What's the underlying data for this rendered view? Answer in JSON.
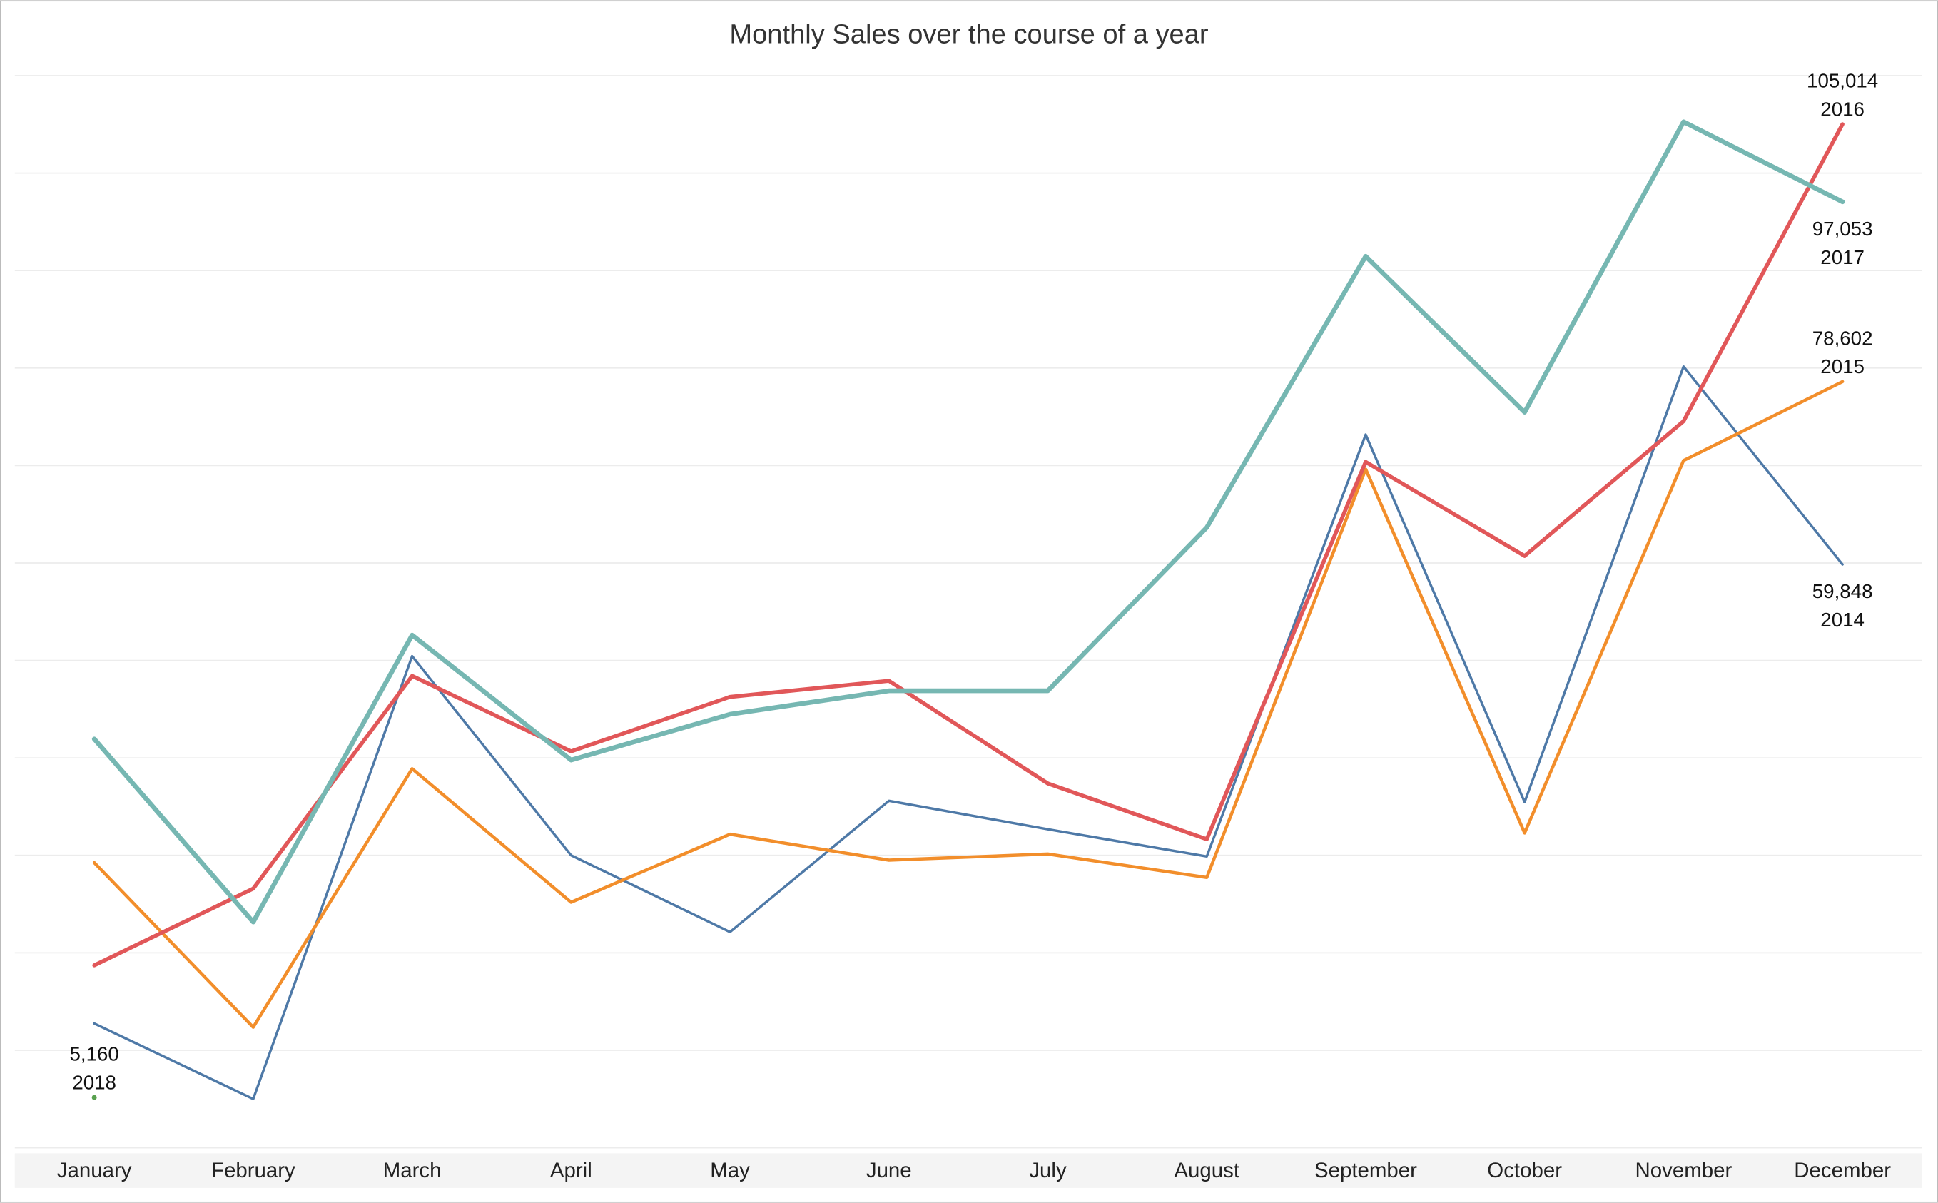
{
  "chart_data": {
    "type": "line",
    "title": "Monthly Sales over the course of a year",
    "categories": [
      "January",
      "February",
      "March",
      "April",
      "May",
      "June",
      "July",
      "August",
      "September",
      "October",
      "November",
      "December"
    ],
    "ylim": [
      0,
      110000
    ],
    "yticks": [
      0,
      10000,
      20000,
      30000,
      40000,
      50000,
      60000,
      70000,
      80000,
      90000,
      100000,
      110000
    ],
    "grid": true,
    "series": [
      {
        "name": "2014",
        "color": "#4e79a7",
        "values": [
          12750,
          5010,
          50440,
          30010,
          22140,
          35600,
          32680,
          29890,
          73170,
          35470,
          80150,
          59848
        ],
        "value_labels": [
          null,
          null,
          null,
          null,
          null,
          null,
          null,
          null,
          null,
          null,
          null,
          "59,848"
        ]
      },
      {
        "name": "2015",
        "color": "#f28e2b",
        "values": [
          29250,
          12370,
          38890,
          25190,
          32170,
          29510,
          30140,
          27730,
          69620,
          32300,
          70510,
          78602
        ],
        "value_labels": [
          null,
          null,
          null,
          null,
          null,
          null,
          null,
          null,
          null,
          null,
          null,
          "78,602"
        ]
      },
      {
        "name": "2016",
        "color": "#e15759",
        "values": [
          18720,
          26590,
          48410,
          40670,
          46260,
          47910,
          37380,
          31660,
          70370,
          60720,
          74550,
          105014
        ],
        "value_labels": [
          null,
          null,
          null,
          null,
          null,
          null,
          null,
          null,
          null,
          null,
          null,
          "105,014"
        ]
      },
      {
        "name": "2017",
        "color": "#76b7b2",
        "values": [
          41940,
          23160,
          52600,
          39780,
          44480,
          46890,
          46890,
          63640,
          91460,
          75470,
          105260,
          97053
        ],
        "value_labels": [
          null,
          null,
          null,
          null,
          null,
          null,
          null,
          null,
          null,
          null,
          null,
          "97,053"
        ]
      },
      {
        "name": "2018",
        "color": "#59a14f",
        "values": [
          5160,
          null,
          null,
          null,
          null,
          null,
          null,
          null,
          null,
          null,
          null,
          null
        ],
        "value_labels": [
          "5,160",
          null,
          null,
          null,
          null,
          null,
          null,
          null,
          null,
          null,
          null,
          null
        ]
      }
    ]
  }
}
